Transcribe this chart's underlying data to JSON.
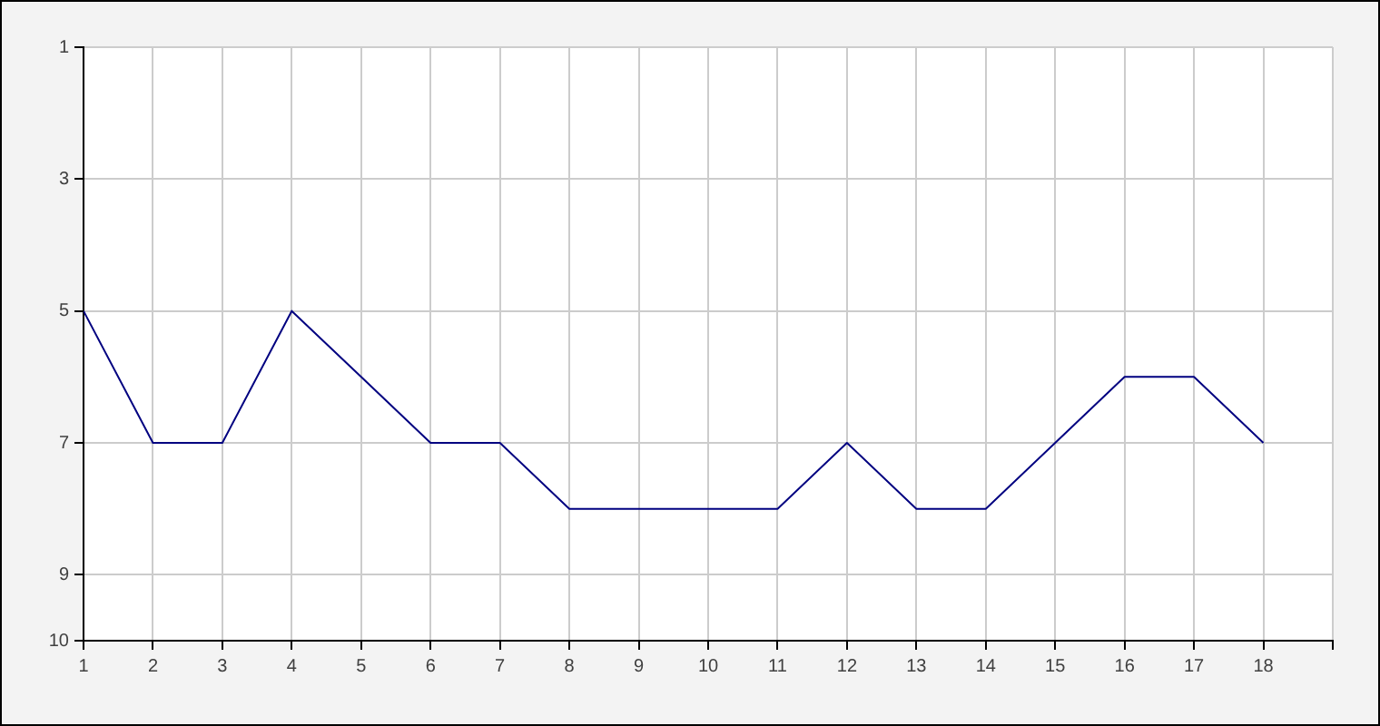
{
  "chart_data": {
    "type": "line",
    "x": [
      1,
      2,
      3,
      4,
      5,
      6,
      7,
      8,
      9,
      10,
      11,
      12,
      13,
      14,
      15,
      16,
      17,
      18
    ],
    "values": [
      5,
      7,
      7,
      5,
      6,
      7,
      7,
      8,
      8,
      8,
      8,
      7,
      8,
      8,
      7,
      6,
      6,
      7
    ],
    "color": "#000080",
    "xlim": [
      1,
      19
    ],
    "xticks": [
      1,
      2,
      3,
      4,
      5,
      6,
      7,
      8,
      9,
      10,
      11,
      12,
      13,
      14,
      15,
      16,
      17,
      18,
      {
        "value": 19,
        "label": null
      }
    ],
    "ylim": [
      10,
      1
    ],
    "yticks": [
      1,
      3,
      5,
      7,
      9,
      10
    ],
    "grid": true,
    "marker": "none",
    "line_style": "solid"
  }
}
